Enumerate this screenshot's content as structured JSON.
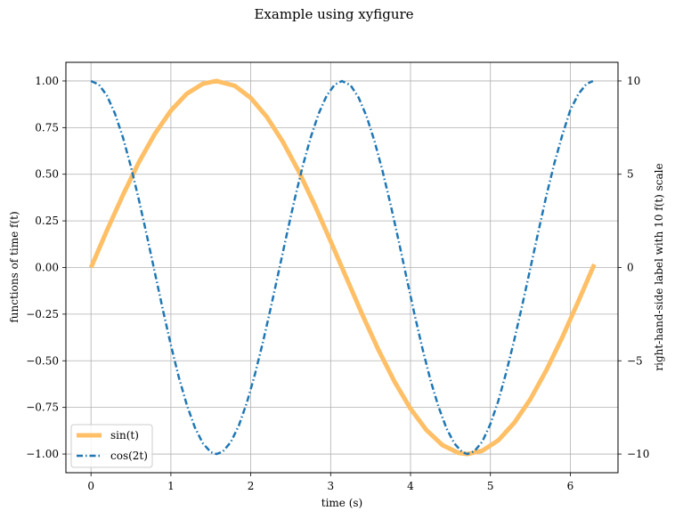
{
  "chart_data": {
    "type": "line",
    "title": "Example using xyfigure",
    "xlabel": "time (s)",
    "ylabel": "functions of time f(t)",
    "ylabel_right": "right-hand-side label with 10 f(t) scale",
    "xlim": [
      -0.3142,
      6.5973
    ],
    "ylim": [
      -1.1,
      1.1
    ],
    "ylim_right": [
      -11,
      11
    ],
    "xticks": [
      0,
      1,
      2,
      3,
      4,
      5,
      6
    ],
    "yticks": [
      -1.0,
      -0.75,
      -0.5,
      -0.25,
      0.0,
      0.25,
      0.5,
      0.75,
      1.0
    ],
    "yticks_right": [
      -10,
      -5,
      0,
      5,
      10
    ],
    "grid": true,
    "legend_position": "lower-left",
    "colors": {
      "sin": "#ffbf66",
      "cos": "#1f77b4",
      "grid": "#b0b0b0"
    },
    "series": [
      {
        "name": "sin(t)",
        "style": "solid-thick",
        "x": [
          0,
          0.2,
          0.4,
          0.6,
          0.8,
          1.0,
          1.2,
          1.4,
          1.5708,
          1.8,
          2.0,
          2.2,
          2.4,
          2.6,
          2.8,
          3.0,
          3.1416,
          3.4,
          3.6,
          3.8,
          4.0,
          4.2,
          4.4,
          4.6,
          4.7124,
          4.9,
          5.1,
          5.3,
          5.5,
          5.7,
          5.9,
          6.1,
          6.2832,
          6.3
        ],
        "values": [
          0,
          0.199,
          0.389,
          0.565,
          0.717,
          0.841,
          0.932,
          0.985,
          1.0,
          0.974,
          0.909,
          0.808,
          0.675,
          0.516,
          0.335,
          0.141,
          0.0,
          -0.256,
          -0.443,
          -0.612,
          -0.757,
          -0.872,
          -0.952,
          -0.994,
          -1.0,
          -0.982,
          -0.926,
          -0.832,
          -0.706,
          -0.551,
          -0.374,
          -0.182,
          0.0,
          0.017
        ]
      },
      {
        "name": "cos(2t)",
        "style": "dash-dot",
        "x": [
          0,
          0.1,
          0.2,
          0.3,
          0.4,
          0.5,
          0.6,
          0.7,
          0.8,
          0.9,
          1.0,
          1.1,
          1.2,
          1.3,
          1.4,
          1.5,
          1.5708,
          1.65,
          1.75,
          1.85,
          1.95,
          2.05,
          2.15,
          2.25,
          2.35,
          2.45,
          2.55,
          2.65,
          2.75,
          2.85,
          2.95,
          3.05,
          3.1416,
          3.25,
          3.35,
          3.45,
          3.55,
          3.65,
          3.75,
          3.85,
          3.95,
          4.05,
          4.15,
          4.25,
          4.35,
          4.45,
          4.55,
          4.65,
          4.7124,
          4.8,
          4.9,
          5.0,
          5.1,
          5.2,
          5.3,
          5.4,
          5.5,
          5.6,
          5.7,
          5.8,
          5.9,
          6.0,
          6.1,
          6.2,
          6.2832
        ],
        "values": [
          1.0,
          0.98,
          0.921,
          0.825,
          0.697,
          0.54,
          0.362,
          0.17,
          -0.029,
          -0.227,
          -0.416,
          -0.589,
          -0.737,
          -0.857,
          -0.942,
          -0.99,
          -1.0,
          -0.987,
          -0.936,
          -0.848,
          -0.726,
          -0.576,
          -0.404,
          -0.217,
          -0.021,
          0.176,
          0.367,
          0.543,
          0.697,
          0.825,
          0.921,
          0.98,
          1.0,
          0.977,
          0.911,
          0.81,
          0.676,
          0.517,
          0.338,
          0.146,
          -0.054,
          -0.251,
          -0.436,
          -0.604,
          -0.746,
          -0.862,
          -0.944,
          -0.991,
          -1.0,
          -0.985,
          -0.932,
          -0.839,
          -0.714,
          -0.559,
          -0.386,
          -0.199,
          -0.004,
          0.192,
          0.384,
          0.558,
          0.71,
          0.844,
          0.929,
          0.983,
          1.0
        ]
      }
    ]
  }
}
